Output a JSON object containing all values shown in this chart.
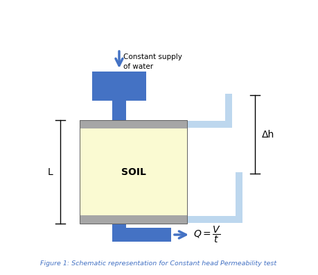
{
  "title": "Figure 1: Schematic representation for Constant head Permeability test",
  "title_color": "#4472C4",
  "background_color": "#ffffff",
  "blue_color": "#4472C4",
  "light_blue_color": "#BDD7EE",
  "gray_color": "#A6A6A6",
  "soil_color": "#FAFAD2",
  "text_color": "#000000",
  "supply_text_line1": "Constant supply",
  "supply_text_line2": "of water",
  "soil_label": "SOIL",
  "L_label": "L",
  "dh_label": "Δh"
}
